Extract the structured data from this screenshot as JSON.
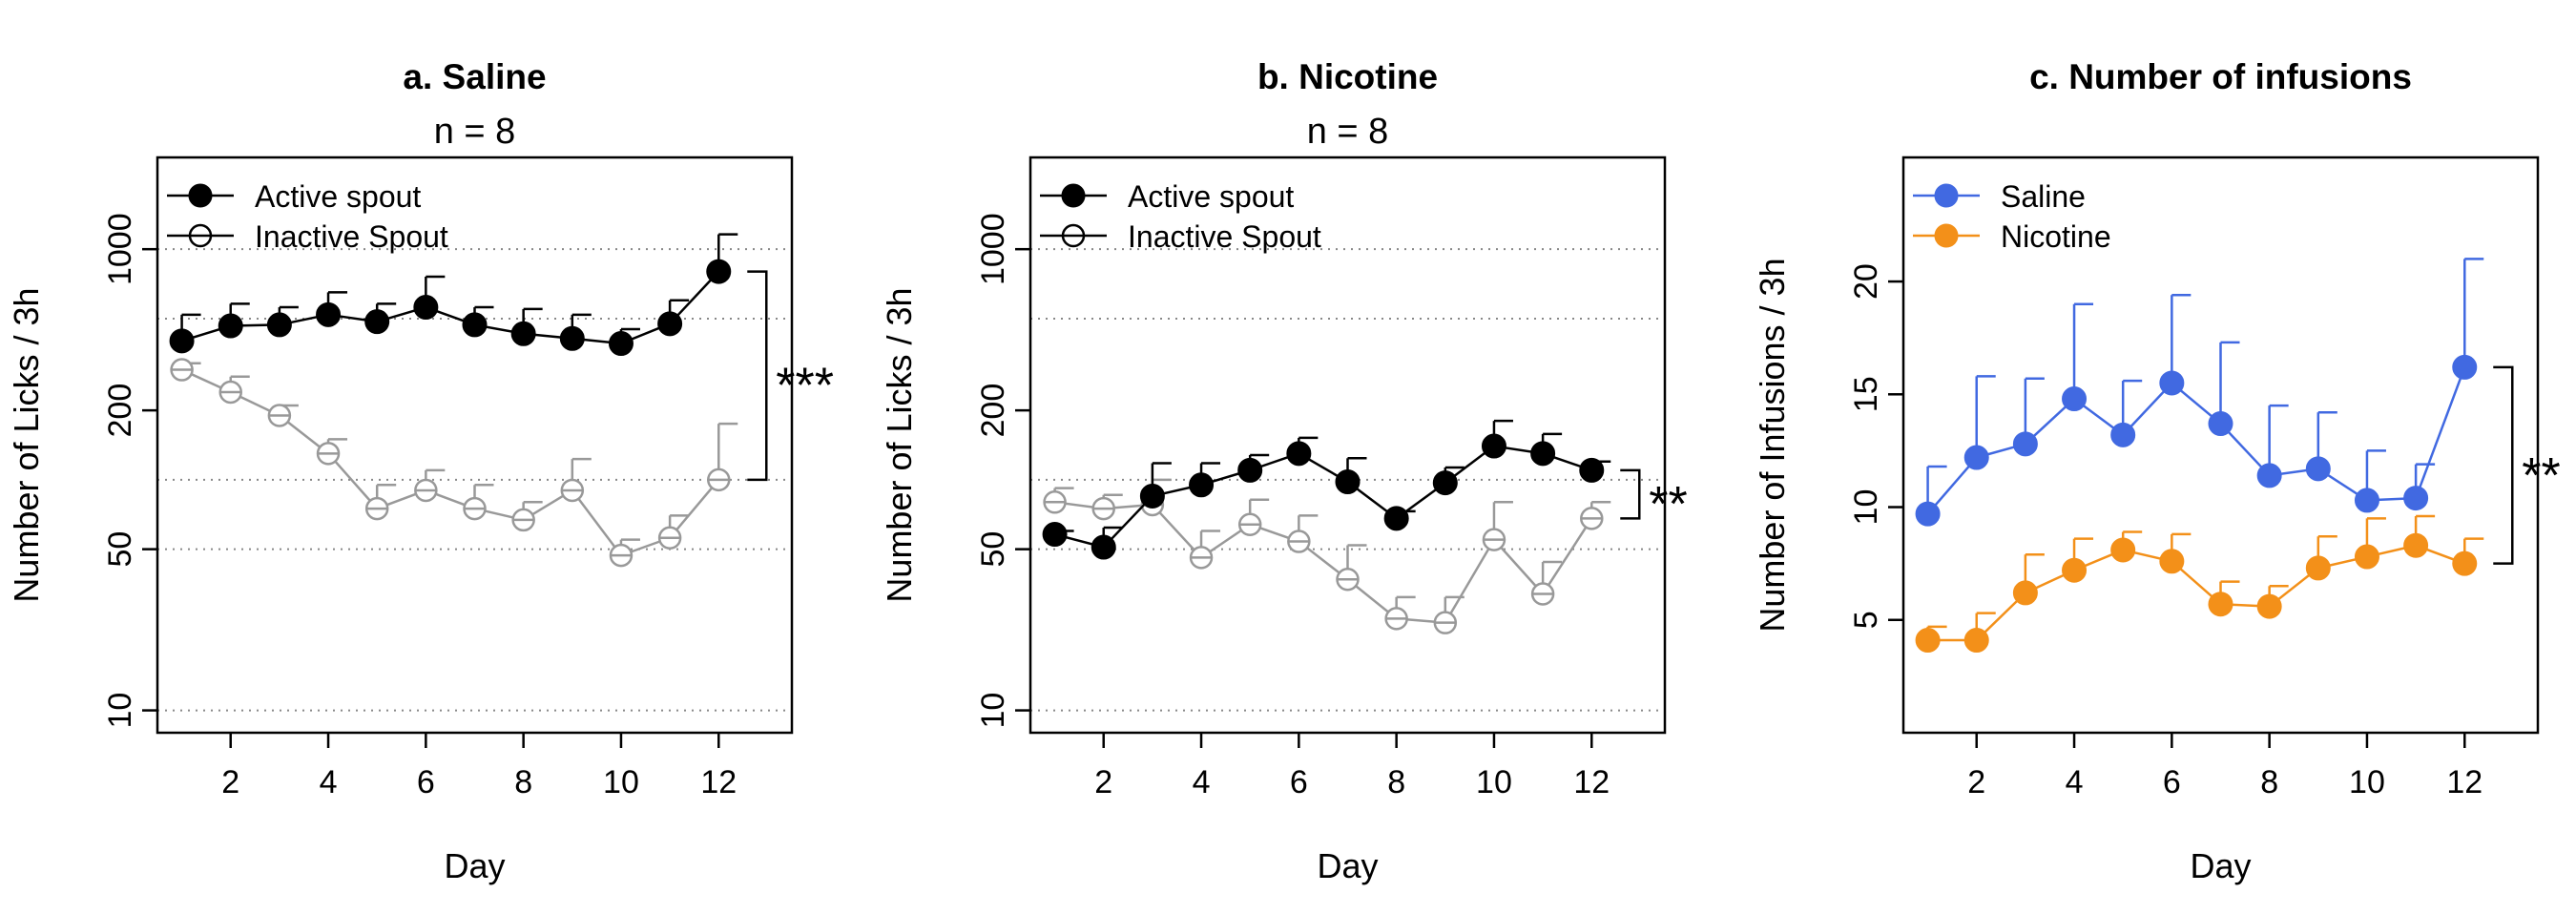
{
  "chart_data": [
    {
      "type": "line",
      "title": "a. Saline",
      "subtitle": "n = 8",
      "xlabel": "Day",
      "ylabel": "Number of Licks / 3h",
      "yscale": "log",
      "ylim": [
        8,
        2500
      ],
      "xlim": [
        0.5,
        13.5
      ],
      "x_ticks": [
        2,
        4,
        6,
        8,
        10,
        12
      ],
      "y_ticks": [
        10,
        50,
        200,
        1000
      ],
      "y_ticklabels": [
        "10",
        "50",
        "200",
        "1000"
      ],
      "gridlines_y": [
        10,
        50,
        100,
        500,
        1000
      ],
      "legend": "top-left",
      "x": [
        1,
        2,
        3,
        4,
        5,
        6,
        7,
        8,
        9,
        10,
        11,
        12
      ],
      "series": [
        {
          "name": "Active spout",
          "color": "#000000",
          "filled": true,
          "values": [
            400,
            465,
            470,
            520,
            485,
            560,
            470,
            430,
            410,
            390,
            475,
            800
          ],
          "errors": [
            520,
            580,
            560,
            650,
            580,
            760,
            560,
            550,
            520,
            450,
            600,
            1160
          ]
        },
        {
          "name": "Inactive Spout",
          "color": "#999999",
          "filled": false,
          "values": [
            300,
            240,
            190,
            130,
            75,
            90,
            75,
            67,
            90,
            47,
            56,
            100
          ],
          "errors": [
            320,
            280,
            210,
            150,
            95,
            110,
            95,
            80,
            123,
            55,
            70,
            175
          ]
        }
      ],
      "significance": {
        "label": "***",
        "series_index": [
          0,
          1
        ],
        "x": 12
      }
    },
    {
      "type": "line",
      "title": "b. Nicotine",
      "subtitle": "n = 8",
      "xlabel": "Day",
      "ylabel": "Number of Licks / 3h",
      "yscale": "log",
      "ylim": [
        8,
        2500
      ],
      "xlim": [
        0.5,
        13.5
      ],
      "x_ticks": [
        2,
        4,
        6,
        8,
        10,
        12
      ],
      "y_ticks": [
        10,
        50,
        200,
        1000
      ],
      "y_ticklabels": [
        "10",
        "50",
        "200",
        "1000"
      ],
      "gridlines_y": [
        10,
        50,
        100,
        500,
        1000
      ],
      "legend": "top-left",
      "x": [
        1,
        2,
        3,
        4,
        5,
        6,
        7,
        8,
        9,
        10,
        11,
        12
      ],
      "series": [
        {
          "name": "Active spout",
          "color": "#000000",
          "filled": true,
          "values": [
            58,
            51,
            85,
            95,
            110,
            130,
            98,
            68,
            97,
            140,
            130,
            110
          ],
          "errors": [
            60,
            62,
            118,
            118,
            128,
            152,
            124,
            73,
            113,
            180,
            158,
            120
          ]
        },
        {
          "name": "Inactive Spout",
          "color": "#999999",
          "filled": false,
          "values": [
            80,
            75,
            78,
            46,
            64,
            54,
            37,
            25,
            24,
            55,
            32,
            68
          ],
          "errors": [
            92,
            86,
            100,
            60,
            82,
            70,
            52,
            31,
            31,
            80,
            44,
            80
          ]
        }
      ],
      "significance": {
        "label": "**",
        "series_index": [
          0,
          1
        ],
        "x": 12
      }
    },
    {
      "type": "line",
      "title": "c. Number of infusions",
      "xlabel": "Day",
      "ylabel": "Number of Infusions / 3h",
      "yscale": "linear",
      "ylim": [
        0,
        25.5
      ],
      "xlim": [
        0.5,
        13.5
      ],
      "x_ticks": [
        2,
        4,
        6,
        8,
        10,
        12
      ],
      "y_ticks": [
        5,
        10,
        15,
        20
      ],
      "y_ticklabels": [
        "5",
        "10",
        "15",
        "20"
      ],
      "gridlines_y": [],
      "legend": "top-left",
      "x": [
        1,
        2,
        3,
        4,
        5,
        6,
        7,
        8,
        9,
        10,
        11,
        12
      ],
      "series": [
        {
          "name": "Saline",
          "color": "#4169E1",
          "filled": true,
          "values": [
            9.7,
            12.2,
            12.8,
            14.8,
            13.2,
            15.5,
            13.7,
            11.4,
            11.7,
            10.3,
            10.4,
            16.2
          ],
          "errors": [
            11.8,
            15.8,
            15.7,
            19.0,
            15.6,
            19.4,
            17.3,
            14.5,
            14.2,
            12.5,
            11.9,
            21.0
          ]
        },
        {
          "name": "Nicotine",
          "color": "#F39019",
          "filled": true,
          "values": [
            4.1,
            4.1,
            6.2,
            7.2,
            8.1,
            7.6,
            5.7,
            5.6,
            7.3,
            7.8,
            8.3,
            7.5
          ],
          "errors": [
            4.7,
            5.3,
            7.9,
            8.6,
            8.9,
            8.8,
            6.7,
            6.5,
            8.7,
            9.5,
            9.6,
            8.6
          ]
        }
      ],
      "significance": {
        "label": "**",
        "series_index": [
          0,
          1
        ],
        "x": 12
      }
    }
  ]
}
